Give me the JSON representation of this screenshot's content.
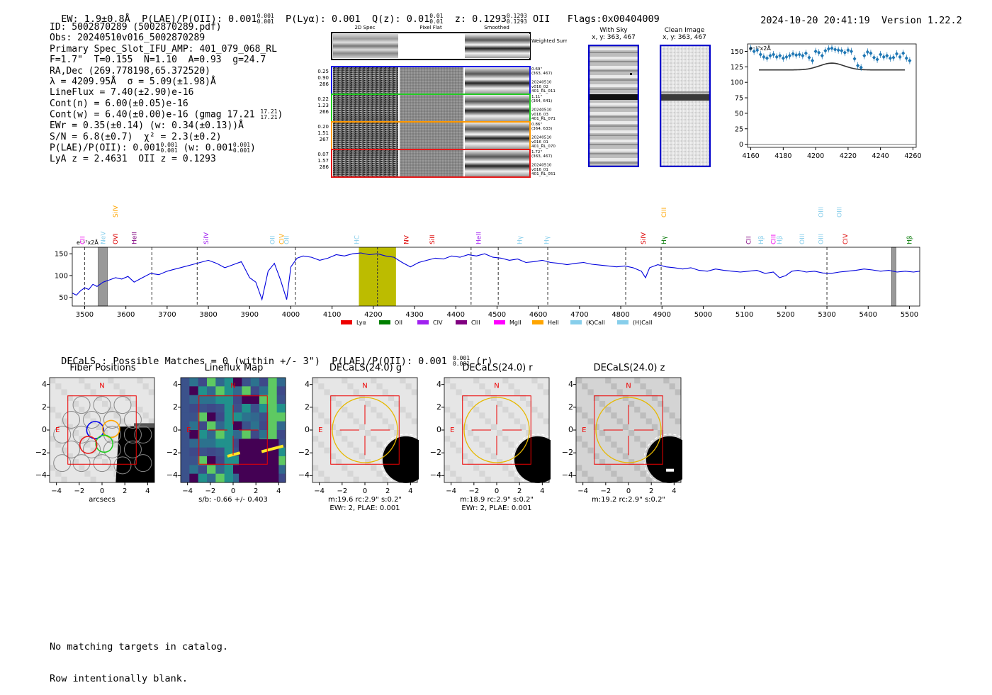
{
  "header": {
    "ew": "EW: 1.9±0.8Å",
    "plae": "P(LAE)/P(OII): 0.001",
    "plae_hi": "0.001",
    "plae_lo": "0.001",
    "plya": "P(Lyα): 0.001",
    "qz": "Q(z): 0.01",
    "qz_hi": "0.01",
    "qz_lo": "0.01",
    "z": "z: 0.1293",
    "z_hi": "0.1293",
    "z_lo": "0.1293",
    "z_line": "OII",
    "flags": "Flags:0x00404009",
    "timestamp": "2024-10-20 20:41:19",
    "version": "Version 1.22.2"
  },
  "info": {
    "id": "ID: 5002870289 (5002870289.pdf)",
    "obs": "Obs: 20240510v016_5002870289",
    "spec": "Primary Spec_Slot_IFU_AMP: 401_079_068_RL",
    "fit": "F=1.7\"  T=0.155  N=1.10  A=0.93  g=24.7",
    "radec": "RA,Dec (269.778198,65.372520)",
    "lambda": "λ = 4209.95Å  σ = 5.09(±1.98)Å",
    "lineflux": "LineFlux = 7.40(±2.90)e-16",
    "contn": "Cont(n) = 6.00(±0.05)e-16",
    "contw": "Cont(w) = 6.40(±0.00)e-16 (gmag 17.21",
    "contw_hi": "17.21",
    "contw_lo": "17.21",
    "ewr": "EWr = 0.35(±0.14) (w: 0.34(±0.13))Å",
    "sn": "S/N = 6.8(±0.7)  χ² = 2.3(±0.2)",
    "plae_line": "P(LAE)/P(OII): 0.001",
    "plae_line_hi": "0.001",
    "plae_line_lo": "0.001",
    "plae_w": "(w: 0.001",
    "plae_w_hi": "0.001",
    "plae_w_lo": "0.001",
    "lya_z": "LyA z = 2.4631  OII z = 0.1293"
  },
  "cutouts": {
    "col_2d": "2D Spec",
    "col_flat": "Pixel Flat",
    "col_smooth": "Smoothed",
    "weighted": "Weighted Sum",
    "rows": [
      {
        "left": [
          "0.25",
          "0.90",
          "286"
        ],
        "right": [
          "0.69\"",
          "(363, 467)",
          "",
          "20240510",
          "v016_02",
          "401_RL_011"
        ],
        "color": "#1a1ae6"
      },
      {
        "left": [
          "0.22",
          "1.23",
          "266"
        ],
        "right": [
          "1.11\"",
          "(364, 641)",
          "",
          "20240510",
          "v016_03",
          "401_RL_071"
        ],
        "color": "#22cc22"
      },
      {
        "left": [
          "0.20",
          "1.51",
          "267"
        ],
        "right": [
          "0.86\"",
          "(364, 633)",
          "",
          "20240510",
          "v016_01",
          "401_RL_070"
        ],
        "color": "#ff9900"
      },
      {
        "left": [
          "0.07",
          "1.57",
          "286"
        ],
        "right": [
          "1.72\"",
          "(363, 467)",
          "",
          "20240510",
          "v016_01",
          "401_RL_051"
        ],
        "color": "#e61a1a"
      }
    ],
    "with_sky": "With Sky",
    "with_sky_xy": "x, y: 363, 467",
    "clean": "Clean Image",
    "clean_xy": "x, y: 363, 467"
  },
  "zoom_chart": {
    "type": "scatter",
    "ylabel_note": "e⁻¹⁷x2Å",
    "xlim": [
      4158,
      4262
    ],
    "ylim": [
      -5,
      162
    ],
    "xticks": [
      4160,
      4180,
      4200,
      4220,
      4240,
      4260
    ],
    "yticks": [
      0,
      25,
      50,
      75,
      100,
      125,
      150
    ],
    "x": [
      4160,
      4162,
      4164,
      4166,
      4168,
      4170,
      4172,
      4174,
      4176,
      4178,
      4180,
      4182,
      4184,
      4186,
      4188,
      4190,
      4192,
      4194,
      4196,
      4198,
      4200,
      4202,
      4204,
      4206,
      4208,
      4210,
      4212,
      4214,
      4216,
      4218,
      4220,
      4222,
      4224,
      4226,
      4228,
      4230,
      4232,
      4234,
      4236,
      4238,
      4240,
      4242,
      4244,
      4246,
      4248,
      4250,
      4252,
      4254,
      4256,
      4258
    ],
    "y": [
      155,
      150,
      152,
      145,
      141,
      139,
      143,
      145,
      141,
      143,
      139,
      141,
      143,
      146,
      144,
      145,
      143,
      147,
      140,
      135,
      150,
      148,
      143,
      151,
      154,
      155,
      153,
      152,
      151,
      148,
      152,
      150,
      138,
      127,
      124,
      143,
      149,
      147,
      140,
      137,
      145,
      141,
      143,
      139,
      140,
      146,
      141,
      147,
      139,
      135
    ],
    "model_baseline": 120,
    "model_peak": 131,
    "model_center": 4210,
    "model_sigma": 5.1
  },
  "main_spectrum": {
    "type": "line",
    "ylabel_note": "e⁻¹⁷x2Å",
    "xlim": [
      3470,
      5525
    ],
    "ylim": [
      30,
      165
    ],
    "xticks": [
      3500,
      3600,
      3700,
      3800,
      3900,
      4000,
      4100,
      4200,
      4300,
      4400,
      4500,
      4600,
      4700,
      4800,
      4900,
      5000,
      5100,
      5200,
      5300,
      5400,
      5500
    ],
    "yticks": [
      50,
      100,
      150
    ],
    "x": [
      3470,
      3480,
      3490,
      3500,
      3510,
      3520,
      3530,
      3545,
      3560,
      3575,
      3590,
      3605,
      3620,
      3640,
      3660,
      3680,
      3700,
      3720,
      3740,
      3760,
      3780,
      3800,
      3820,
      3840,
      3860,
      3880,
      3900,
      3915,
      3930,
      3945,
      3960,
      3975,
      3990,
      4000,
      4015,
      4030,
      4050,
      4070,
      4090,
      4110,
      4130,
      4150,
      4170,
      4190,
      4210,
      4230,
      4250,
      4270,
      4290,
      4310,
      4330,
      4350,
      4370,
      4390,
      4410,
      4430,
      4450,
      4470,
      4490,
      4510,
      4530,
      4550,
      4570,
      4590,
      4610,
      4630,
      4650,
      4670,
      4690,
      4710,
      4730,
      4750,
      4770,
      4790,
      4810,
      4830,
      4850,
      4860,
      4870,
      4890,
      4910,
      4930,
      4950,
      4970,
      4990,
      5010,
      5030,
      5050,
      5070,
      5090,
      5110,
      5130,
      5150,
      5170,
      5185,
      5200,
      5215,
      5230,
      5250,
      5270,
      5290,
      5310,
      5330,
      5350,
      5370,
      5390,
      5410,
      5430,
      5450,
      5470,
      5490,
      5510,
      5525
    ],
    "y": [
      60,
      55,
      65,
      72,
      68,
      80,
      75,
      85,
      90,
      95,
      92,
      98,
      85,
      95,
      105,
      102,
      110,
      115,
      120,
      125,
      130,
      135,
      128,
      118,
      125,
      132,
      95,
      85,
      45,
      110,
      128,
      90,
      45,
      120,
      140,
      145,
      142,
      135,
      140,
      148,
      145,
      150,
      152,
      148,
      150,
      145,
      142,
      130,
      120,
      130,
      135,
      140,
      138,
      145,
      142,
      148,
      145,
      150,
      142,
      140,
      135,
      138,
      130,
      132,
      135,
      130,
      128,
      125,
      128,
      130,
      126,
      124,
      122,
      120,
      122,
      118,
      110,
      95,
      118,
      125,
      120,
      118,
      115,
      118,
      112,
      110,
      115,
      112,
      110,
      108,
      110,
      112,
      105,
      108,
      95,
      100,
      110,
      112,
      108,
      110,
      106,
      105,
      108,
      110,
      112,
      115,
      113,
      110,
      112,
      108,
      110,
      108,
      110
    ],
    "highlight": [
      4165,
      4255
    ],
    "peak_line": 4210,
    "masked": [
      [
        3533,
        3555
      ],
      [
        3455,
        3467
      ]
    ],
    "dashed": [
      3500,
      3663,
      3773,
      4011,
      4437,
      4503,
      4623,
      4812,
      4898,
      5300
    ],
    "masked_right": [
      5457,
      5467
    ],
    "line_labels": [
      {
        "x": 3495,
        "t": "CII",
        "c": "#ee00ee",
        "h": 0
      },
      {
        "x": 3545,
        "t": "NeV",
        "c": "#87ceeb",
        "h": 0
      },
      {
        "x": 3575,
        "t": "OVI",
        "c": "#dd0000",
        "h": 0
      },
      {
        "x": 3575,
        "t": "SiIV",
        "c": "#ffa500",
        "h": 1
      },
      {
        "x": 3620,
        "t": "HeII",
        "c": "#800080",
        "h": 0
      },
      {
        "x": 3795,
        "t": "SiIV",
        "c": "#a020f0",
        "h": 0
      },
      {
        "x": 3955,
        "t": "OII",
        "c": "#87ceeb",
        "h": 0
      },
      {
        "x": 3978,
        "t": "CIV",
        "c": "#ffa500",
        "h": 0
      },
      {
        "x": 3990,
        "t": "OII",
        "c": "#87ceeb",
        "h": 0
      },
      {
        "x": 4160,
        "t": "HC",
        "c": "#87ceeb",
        "h": 0
      },
      {
        "x": 4280,
        "t": "NV",
        "c": "#dd0000",
        "h": 0
      },
      {
        "x": 4343,
        "t": "SiII",
        "c": "#dd0000",
        "h": 0
      },
      {
        "x": 4455,
        "t": "HeII",
        "c": "#a020f0",
        "h": 0
      },
      {
        "x": 4555,
        "t": "Hγ",
        "c": "#87ceeb",
        "h": 0
      },
      {
        "x": 4620,
        "t": "Hγ",
        "c": "#87ceeb",
        "h": 0
      },
      {
        "x": 4855,
        "t": "SiIV",
        "c": "#dd0000",
        "h": 0
      },
      {
        "x": 4905,
        "t": "CIII",
        "c": "#ffa500",
        "h": 1
      },
      {
        "x": 4905,
        "t": "Hγ",
        "c": "#007700",
        "h": 0
      },
      {
        "x": 5110,
        "t": "CII",
        "c": "#800080",
        "h": 0
      },
      {
        "x": 5140,
        "t": "Hβ",
        "c": "#87ceeb",
        "h": 0
      },
      {
        "x": 5170,
        "t": "CIII",
        "c": "#ee00ee",
        "h": 0
      },
      {
        "x": 5185,
        "t": "Hβ",
        "c": "#87ceeb",
        "h": 0
      },
      {
        "x": 5240,
        "t": "OIII",
        "c": "#87ceeb",
        "h": 0
      },
      {
        "x": 5285,
        "t": "OIII",
        "c": "#87ceeb",
        "h": 0
      },
      {
        "x": 5285,
        "t": "OIII",
        "c": "#87ceeb",
        "h": 1
      },
      {
        "x": 5330,
        "t": "OIII",
        "c": "#87ceeb",
        "h": 1
      },
      {
        "x": 5345,
        "t": "CIV",
        "c": "#dd0000",
        "h": 0
      },
      {
        "x": 5500,
        "t": "Hβ",
        "c": "#007700",
        "h": 0
      }
    ],
    "legend": [
      {
        "name": "Lyα",
        "color": "#ee0000"
      },
      {
        "name": "OII",
        "color": "#008000"
      },
      {
        "name": "CIV",
        "color": "#a020f0"
      },
      {
        "name": "CIII",
        "color": "#800080"
      },
      {
        "name": "MgII",
        "color": "#ff00ff"
      },
      {
        "name": "HeII",
        "color": "#ffa500"
      },
      {
        "name": "(K)CaII",
        "color": "#87ceeb"
      },
      {
        "name": "(H)CaII",
        "color": "#87ceeb"
      }
    ]
  },
  "decals": {
    "summary": "DECaLS : Possible Matches = 0 (within +/- 3\")  P(LAE)/P(OII): 0.001",
    "summary_hi": "0.001",
    "summary_lo": "0.001",
    "summary_tail": "(r)",
    "ticks": [
      -4,
      -2,
      0,
      2,
      4
    ],
    "panels": [
      {
        "title": "Fiber Positions",
        "caption1": "arcsecs",
        "caption2": ""
      },
      {
        "title": "Lineflux Map",
        "caption1": "s/b: -0.66 +/- 0.403",
        "caption2": ""
      },
      {
        "title": "DECaLS(24.0) g",
        "caption1": "m:19.6 rc:2.9\"  s:0.2\"",
        "caption2": "EWr: 2, PLAE: 0.001"
      },
      {
        "title": "DECaLS(24.0) r",
        "caption1": "m:18.9 rc:2.9\"  s:0.2\"",
        "caption2": "EWr: 2, PLAE: 0.001"
      },
      {
        "title": "DECaLS(24.0) z",
        "caption1": "m:19.2 rc:2.9\"  s:0.2\"",
        "caption2": ""
      }
    ],
    "north": "N",
    "east": "E"
  },
  "footer": {
    "line1": "No matching targets in catalog.",
    "line2": "Row intentionally blank."
  }
}
